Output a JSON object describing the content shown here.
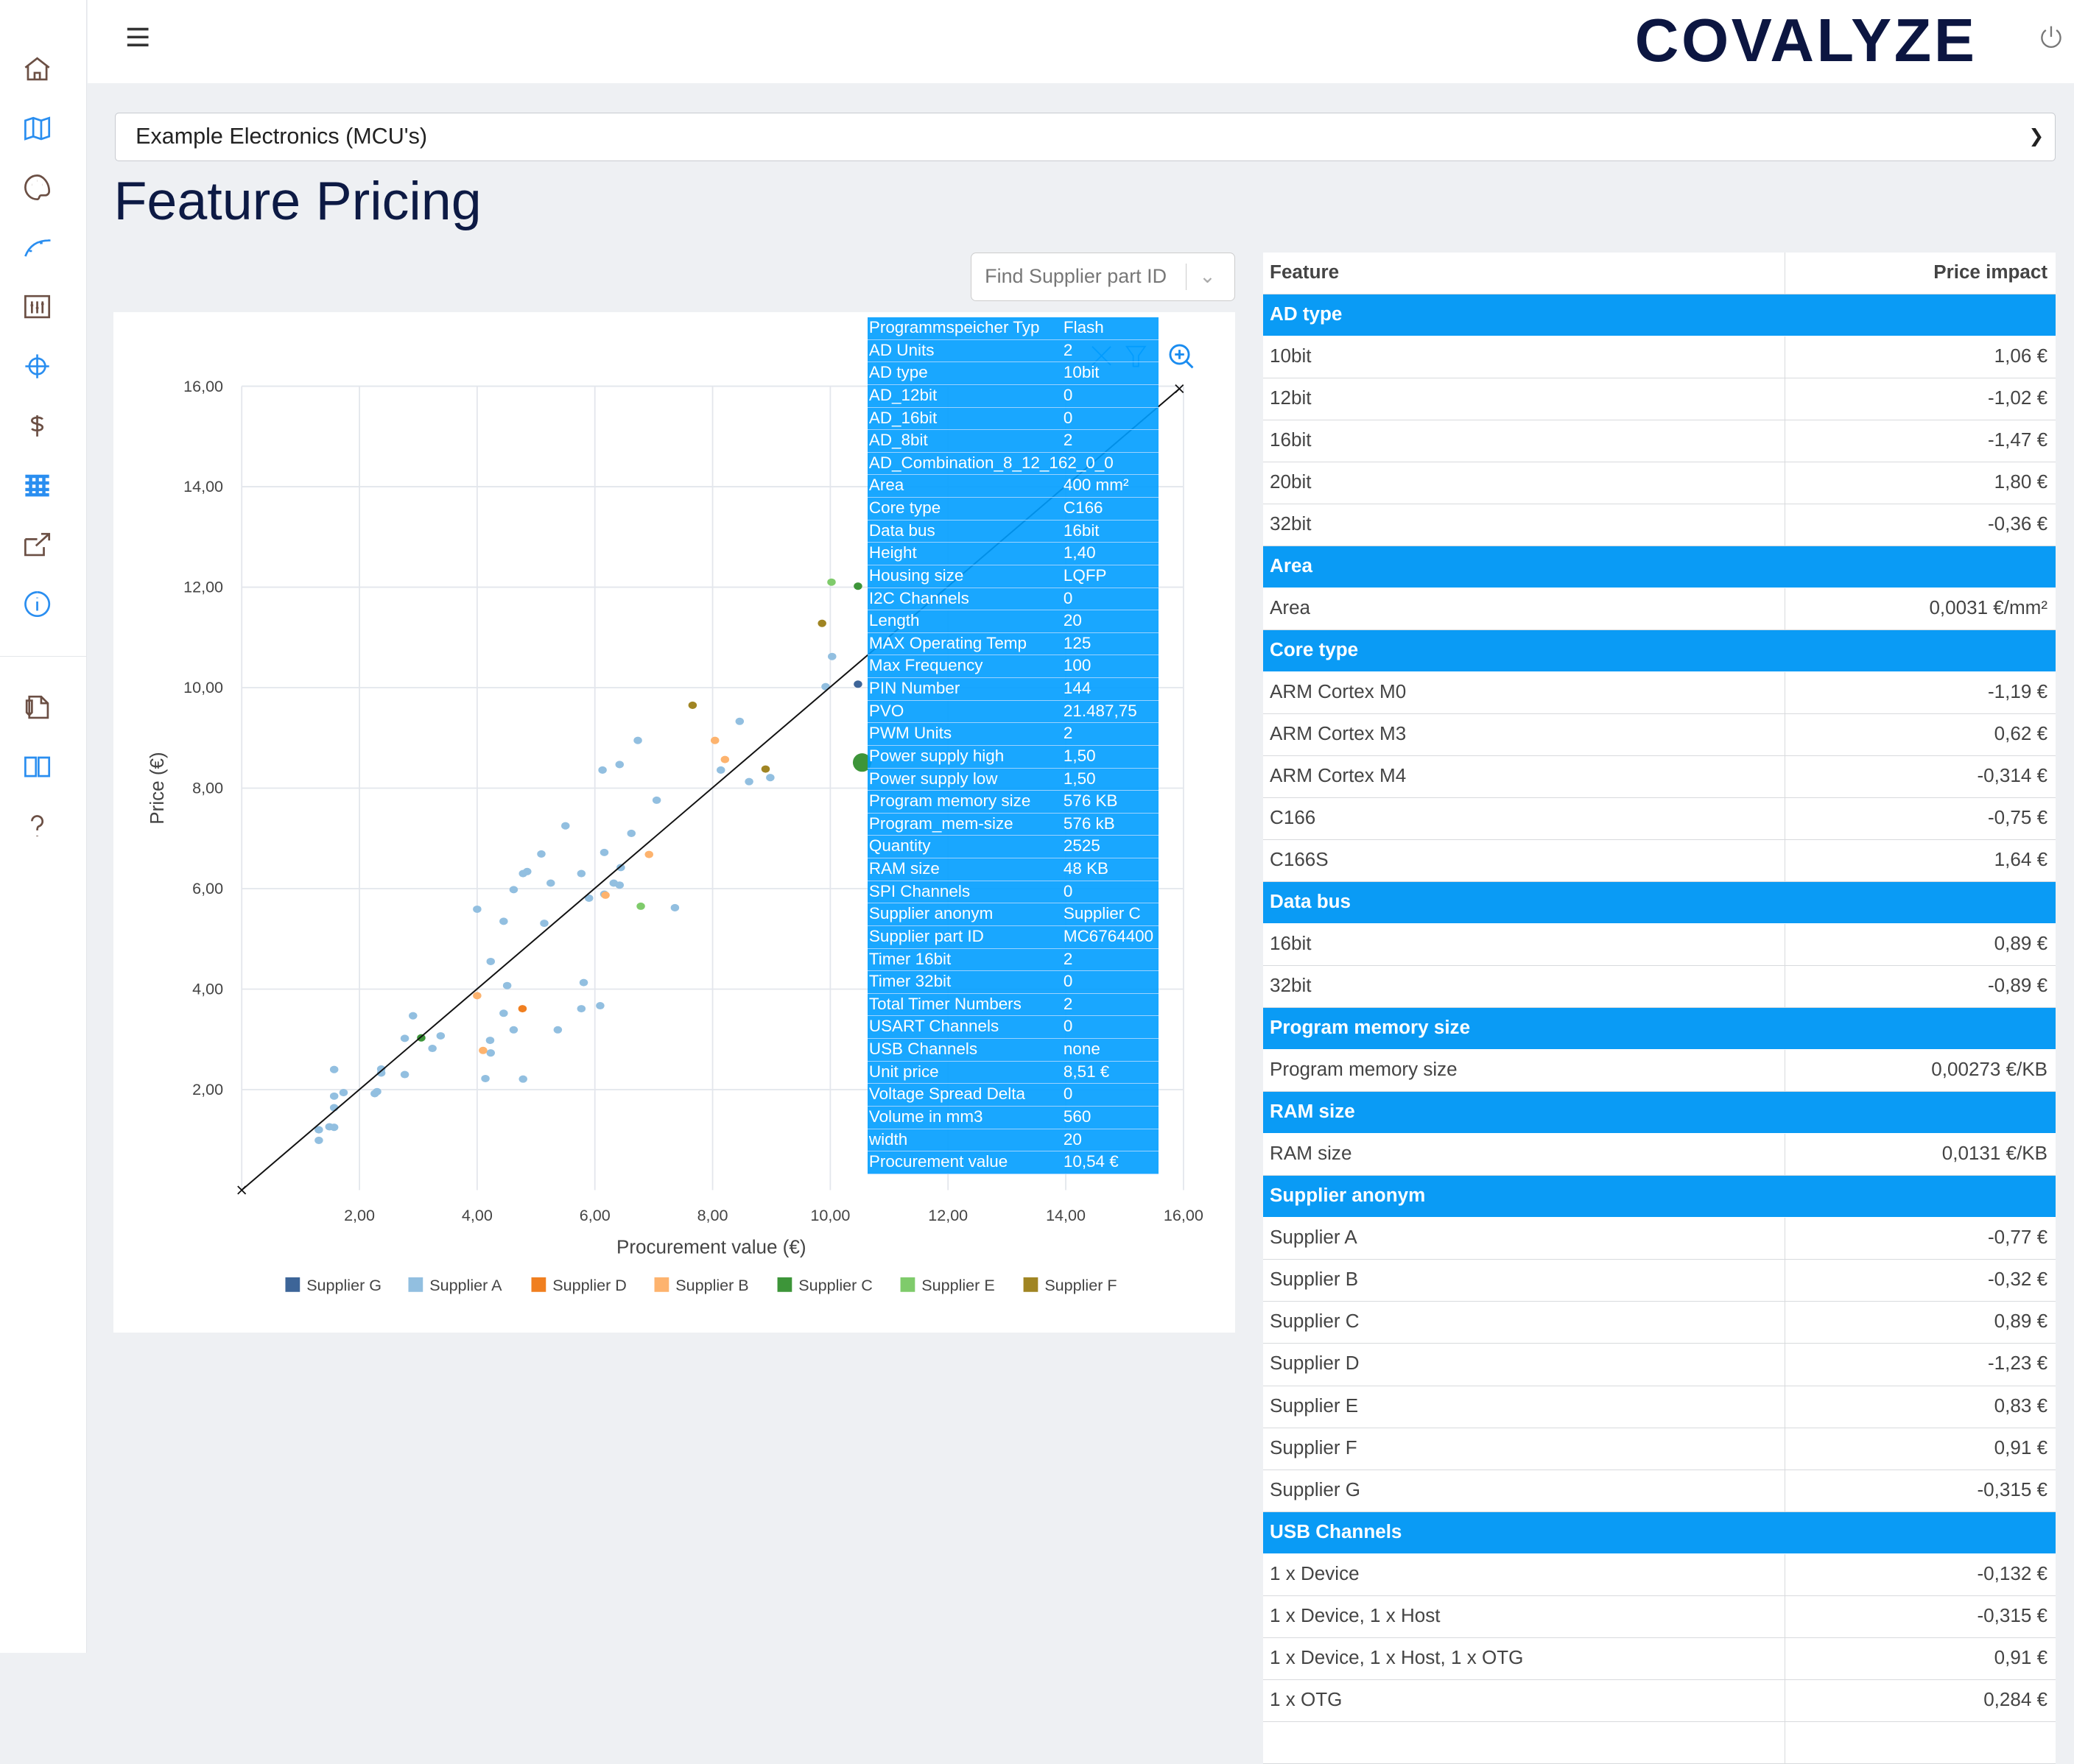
{
  "header": {
    "logo": "COVALYZE",
    "menu_icon": "hamburger-icon",
    "power_icon": "power-icon"
  },
  "sidebar": {
    "items": [
      {
        "name": "home",
        "icon": "home-icon",
        "color": "#6b4f44"
      },
      {
        "name": "map",
        "icon": "map-icon",
        "color": "#2a8ef0"
      },
      {
        "name": "palette",
        "icon": "palette-icon",
        "color": "#6b4f44"
      },
      {
        "name": "curve",
        "icon": "bezier-curve-icon",
        "color": "#2a8ef0"
      },
      {
        "name": "sliders",
        "icon": "sliders-icon",
        "color": "#6b4f44"
      },
      {
        "name": "target",
        "icon": "crosshair-icon",
        "color": "#2a8ef0"
      },
      {
        "name": "pricing",
        "icon": "dollar-icon",
        "color": "#6b4f44"
      },
      {
        "name": "grid",
        "icon": "grid-icon",
        "color": "#2a8ef0"
      },
      {
        "name": "export",
        "icon": "external-link-icon",
        "color": "#6b4f44"
      },
      {
        "name": "info",
        "icon": "info-icon",
        "color": "#2a8ef0"
      },
      {
        "name": "documents",
        "icon": "document-icon",
        "color": "#6b4f44"
      },
      {
        "name": "book",
        "icon": "book-icon",
        "color": "#2a8ef0"
      },
      {
        "name": "help",
        "icon": "question-icon",
        "color": "#6b4f44"
      }
    ]
  },
  "project_select": {
    "value": "Example Electronics (MCU's)"
  },
  "page_title": "Feature Pricing",
  "find_part": {
    "placeholder": "Find Supplier part ID"
  },
  "tooltip": [
    [
      "Programmspeicher Typ",
      " Flash"
    ],
    [
      "AD Units",
      "2"
    ],
    [
      "AD type",
      "10bit"
    ],
    [
      "AD_12bit",
      "0"
    ],
    [
      "AD_16bit",
      "0"
    ],
    [
      "AD_8bit",
      "2"
    ],
    [
      "AD_Combination_8_12_162_0_0",
      ""
    ],
    [
      "Area",
      "400 mm²"
    ],
    [
      "Core type",
      " C166"
    ],
    [
      "Data bus",
      " 16bit"
    ],
    [
      "Height",
      "1,40"
    ],
    [
      "Housing size",
      " LQFP"
    ],
    [
      "I2C Channels",
      "0"
    ],
    [
      "Length",
      "20"
    ],
    [
      "MAX Operating Temp",
      "125"
    ],
    [
      "Max Frequency",
      "100"
    ],
    [
      "PIN Number",
      "144"
    ],
    [
      "PVO",
      "21.487,75"
    ],
    [
      "PWM Units",
      "2"
    ],
    [
      "Power supply high",
      "1,50"
    ],
    [
      "Power supply low",
      "1,50"
    ],
    [
      "Program memory size",
      "576 KB"
    ],
    [
      "Program_mem-size",
      " 576 kB"
    ],
    [
      "Quantity",
      "2525"
    ],
    [
      "RAM size",
      "48 KB"
    ],
    [
      "SPI Channels",
      "0"
    ],
    [
      "Supplier anonym",
      "Supplier C"
    ],
    [
      "Supplier part ID",
      "MC6764400"
    ],
    [
      "Timer 16bit",
      "2"
    ],
    [
      "Timer 32bit",
      "0"
    ],
    [
      "Total Timer Numbers",
      "2"
    ],
    [
      "USART Channels",
      "0"
    ],
    [
      "USB Channels",
      "none"
    ],
    [
      "Unit price",
      "8,51 €"
    ],
    [
      "Voltage Spread Delta",
      "0"
    ],
    [
      "Volume in mm3",
      "560"
    ],
    [
      "width",
      "20"
    ],
    [
      "Procurement value",
      "10,54 €"
    ]
  ],
  "table": {
    "headers": [
      "Feature",
      "Price impact"
    ],
    "rows": [
      {
        "group": "AD type"
      },
      [
        "10bit",
        "1,06 €"
      ],
      [
        "12bit",
        "-1,02 €"
      ],
      [
        "16bit",
        "-1,47 €"
      ],
      [
        "20bit",
        "1,80 €"
      ],
      [
        "32bit",
        "-0,36 €"
      ],
      {
        "group": "Area"
      },
      [
        "Area",
        "0,0031 €/mm²"
      ],
      {
        "group": "Core type"
      },
      [
        "ARM Cortex M0",
        "-1,19 €"
      ],
      [
        "ARM Cortex M3",
        "0,62 €"
      ],
      [
        "ARM Cortex M4",
        "-0,314 €"
      ],
      [
        "C166",
        "-0,75 €"
      ],
      [
        "C166S",
        "1,64 €"
      ],
      {
        "group": "Data bus"
      },
      [
        "16bit",
        "0,89 €"
      ],
      [
        "32bit",
        "-0,89 €"
      ],
      {
        "group": "Program memory size"
      },
      [
        "Program memory size",
        "0,00273 €/KB"
      ],
      {
        "group": "RAM size"
      },
      [
        "RAM size",
        "0,0131 €/KB"
      ],
      {
        "group": "Supplier anonym"
      },
      [
        "Supplier A",
        "-0,77 €"
      ],
      [
        "Supplier B",
        "-0,32 €"
      ],
      [
        "Supplier C",
        "0,89 €"
      ],
      [
        "Supplier D",
        "-1,23 €"
      ],
      [
        "Supplier E",
        "0,83 €"
      ],
      [
        "Supplier F",
        "0,91 €"
      ],
      [
        "Supplier G",
        "-0,315 €"
      ],
      {
        "group": "USB Channels"
      },
      [
        "1 x Device",
        "-0,132 €"
      ],
      [
        "1 x Device, 1 x Host",
        "-0,315 €"
      ],
      [
        "1 x Device, 1 x Host, 1 x OTG",
        "0,91 €"
      ],
      [
        "1 x OTG",
        "0,284 €"
      ],
      [
        "",
        ""
      ]
    ]
  },
  "chart_data": {
    "type": "scatter",
    "xlabel": "Procurement value  (€)",
    "ylabel": "Price (€)",
    "xlim": [
      0,
      16
    ],
    "ylim": [
      0,
      16
    ],
    "xticks": [
      "2,00",
      "4,00",
      "6,00",
      "8,00",
      "10,00",
      "12,00",
      "14,00",
      "16,00"
    ],
    "yticks": [
      "2,00",
      "4,00",
      "6,00",
      "8,00",
      "10,00",
      "12,00",
      "14,00",
      "16,00"
    ],
    "grid": true,
    "legend": "bottom",
    "regression_line": [
      [
        0,
        0
      ],
      [
        15.93,
        15.95
      ]
    ],
    "highlighted": {
      "series": "Supplier C",
      "x": 10.54,
      "y": 8.51
    },
    "series": [
      {
        "name": "Supplier G",
        "color": "#3d6598",
        "points": [
          [
            10.47,
            10.07
          ]
        ]
      },
      {
        "name": "Supplier A",
        "color": "#92bfe0",
        "points": [
          [
            1.31,
            1.2
          ],
          [
            1.31,
            0.99
          ],
          [
            1.49,
            1.26
          ],
          [
            1.57,
            1.25
          ],
          [
            1.57,
            1.64
          ],
          [
            1.57,
            1.87
          ],
          [
            1.57,
            2.4
          ],
          [
            1.73,
            1.94
          ],
          [
            2.26,
            1.92
          ],
          [
            2.3,
            1.96
          ],
          [
            2.37,
            2.41
          ],
          [
            2.37,
            2.33
          ],
          [
            2.77,
            2.3
          ],
          [
            2.77,
            3.02
          ],
          [
            2.91,
            3.47
          ],
          [
            3.24,
            2.82
          ],
          [
            3.38,
            3.07
          ],
          [
            4.0,
            5.59
          ],
          [
            4.14,
            2.22
          ],
          [
            4.22,
            2.98
          ],
          [
            4.23,
            2.73
          ],
          [
            4.23,
            4.55
          ],
          [
            4.45,
            5.35
          ],
          [
            4.45,
            3.52
          ],
          [
            4.51,
            4.07
          ],
          [
            4.62,
            5.98
          ],
          [
            4.62,
            3.19
          ],
          [
            4.78,
            6.3
          ],
          [
            4.85,
            6.34
          ],
          [
            4.78,
            2.21
          ],
          [
            5.09,
            6.69
          ],
          [
            5.14,
            5.31
          ],
          [
            5.25,
            6.11
          ],
          [
            5.37,
            3.19
          ],
          [
            5.5,
            7.25
          ],
          [
            5.77,
            6.3
          ],
          [
            5.77,
            3.61
          ],
          [
            5.81,
            4.13
          ],
          [
            5.9,
            5.81
          ],
          [
            6.09,
            3.67
          ],
          [
            6.13,
            8.36
          ],
          [
            6.16,
            6.72
          ],
          [
            6.16,
            5.89
          ],
          [
            6.32,
            6.11
          ],
          [
            6.42,
            8.47
          ],
          [
            6.42,
            6.07
          ],
          [
            6.44,
            6.42
          ],
          [
            6.62,
            7.1
          ],
          [
            6.73,
            8.95
          ],
          [
            7.05,
            7.76
          ],
          [
            7.36,
            5.62
          ],
          [
            8.14,
            8.36
          ],
          [
            8.46,
            9.33
          ],
          [
            8.62,
            8.13
          ],
          [
            8.98,
            8.21
          ],
          [
            9.92,
            10.02
          ],
          [
            10.03,
            10.62
          ]
        ]
      },
      {
        "name": "Supplier D",
        "color": "#f07f20",
        "points": [
          [
            4.77,
            3.61
          ]
        ]
      },
      {
        "name": "Supplier B",
        "color": "#fdb36e",
        "points": [
          [
            4.0,
            3.87
          ],
          [
            4.1,
            2.78
          ],
          [
            6.18,
            5.87
          ],
          [
            6.92,
            6.68
          ],
          [
            8.04,
            8.95
          ],
          [
            8.21,
            8.57
          ]
        ]
      },
      {
        "name": "Supplier C",
        "color": "#3d9539",
        "points": [
          [
            3.05,
            3.03
          ],
          [
            10.47,
            12.02
          ],
          [
            10.54,
            8.51
          ]
        ]
      },
      {
        "name": "Supplier E",
        "color": "#7fcb6b",
        "points": [
          [
            6.78,
            5.65
          ],
          [
            10.02,
            12.1
          ]
        ]
      },
      {
        "name": "Supplier F",
        "color": "#a08523",
        "points": [
          [
            7.66,
            9.65
          ],
          [
            8.9,
            8.38
          ],
          [
            9.86,
            11.28
          ]
        ]
      }
    ]
  },
  "colors": {
    "accent": "#0a9bf5",
    "title": "#0d1a44"
  }
}
